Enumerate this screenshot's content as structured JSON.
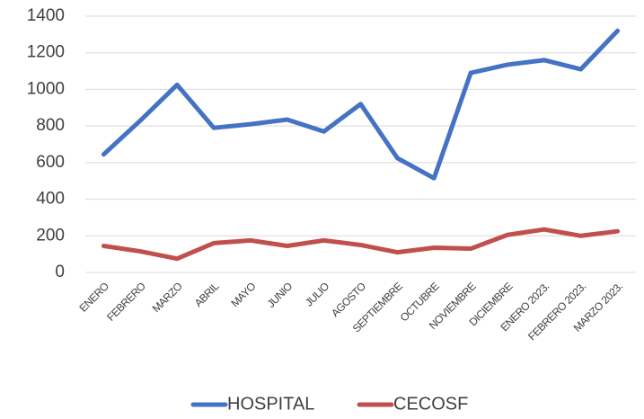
{
  "chart_data": {
    "type": "line",
    "categories": [
      "ENERO",
      "FEBRERO",
      "MARZO",
      "ABRIL",
      "MAYO",
      "JUNIO",
      "JULIO",
      "AGOSTO",
      "SEPTIEMBRE",
      "OCTUBRE",
      "NOVIEMBRE",
      "DICIEMBRE",
      "ENERO 2023.",
      "FEBRERO 2023.",
      "MARZO 2023."
    ],
    "series": [
      {
        "name": "HOSPITAL",
        "color": "#4472c4",
        "values": [
          645,
          830,
          1025,
          790,
          810,
          835,
          770,
          920,
          625,
          515,
          1090,
          1135,
          1160,
          1110,
          1320
        ]
      },
      {
        "name": "CECOSF",
        "color": "#c0504d",
        "values": [
          145,
          115,
          75,
          160,
          175,
          145,
          175,
          150,
          110,
          135,
          130,
          205,
          235,
          200,
          225
        ]
      }
    ],
    "ylim": [
      0,
      1400
    ],
    "yticks": [
      0,
      200,
      400,
      600,
      800,
      1000,
      1200,
      1400
    ],
    "grid": true,
    "legend": "bottom"
  }
}
